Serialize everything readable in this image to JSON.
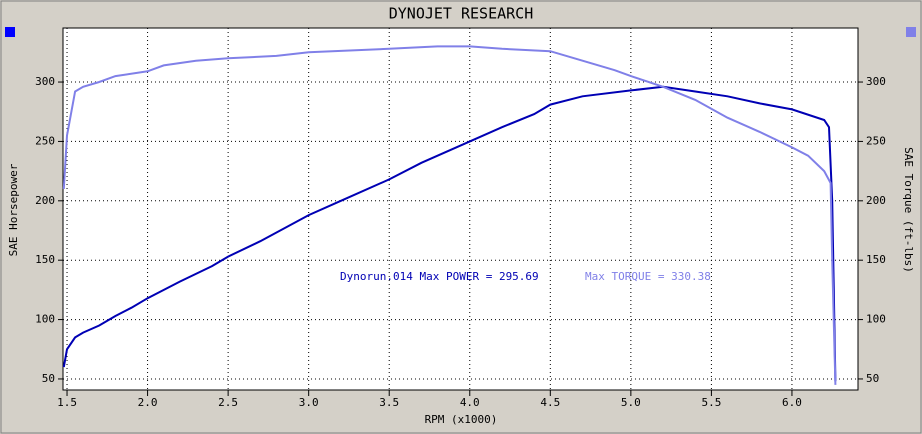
{
  "chart_data": {
    "type": "line",
    "title": "DYNOJET RESEARCH",
    "x_label": "RPM (x1000)",
    "y_label": "SAE Horsepower",
    "y2_label": "SAE Torque (ft-lbs)",
    "annotations": [
      "Dynorun.014 Max POWER = 295.69",
      "Max TORQUE = 330.38"
    ],
    "xlim": [
      1.475,
      6.41
    ],
    "xticks": [
      1.5,
      {
        "value": 2.0,
        "label": "2.0"
      },
      2.5,
      {
        "value": 3.0,
        "label": "3.0"
      },
      3.5,
      {
        "value": 4.0,
        "label": "4.0"
      },
      4.5,
      {
        "value": 5.0,
        "label": "5.0"
      },
      5.5,
      {
        "value": 6.0,
        "label": "6.0"
      }
    ],
    "ylim": [
      40.7,
      345.5
    ],
    "yticks": [
      50,
      100,
      150,
      200,
      250,
      300
    ],
    "y2lim": [
      40.7,
      345.5
    ],
    "y2ticks": [
      50,
      100,
      150,
      200,
      250,
      300
    ],
    "grid": true,
    "series": [
      {
        "color": "#0000b4",
        "x": [
          1.48,
          1.5,
          1.55,
          1.6,
          1.7,
          1.8,
          1.9,
          2.0,
          2.2,
          2.4,
          2.5,
          2.7,
          3.0,
          3.2,
          3.5,
          3.7,
          4.0,
          4.2,
          4.4,
          4.5,
          4.7,
          5.0,
          5.2,
          5.4,
          5.6,
          5.8,
          6.0,
          6.2,
          6.23,
          6.25,
          6.27
        ],
        "values": [
          60,
          75,
          85,
          89,
          95,
          103,
          110,
          118,
          132,
          145,
          153,
          166,
          188,
          200,
          218,
          232,
          250,
          262,
          273,
          281,
          288,
          293,
          296,
          292,
          288,
          282,
          277,
          268,
          262,
          200,
          48
        ]
      },
      {
        "color": "#8080e8",
        "axis": "y2",
        "x": [
          1.48,
          1.5,
          1.55,
          1.6,
          1.7,
          1.8,
          2.0,
          2.1,
          2.3,
          2.5,
          2.8,
          3.0,
          3.5,
          3.8,
          4.0,
          4.2,
          4.5,
          4.7,
          4.9,
          5.0,
          5.2,
          5.4,
          5.6,
          5.8,
          6.0,
          6.1,
          6.2,
          6.24,
          6.25,
          6.27
        ],
        "values": [
          210,
          255,
          292,
          296,
          300,
          305,
          309,
          314,
          318,
          320,
          322,
          325,
          328,
          330,
          330,
          328,
          326,
          318,
          310,
          305,
          296,
          285,
          270,
          258,
          245,
          238,
          225,
          215,
          150,
          45
        ]
      }
    ]
  }
}
